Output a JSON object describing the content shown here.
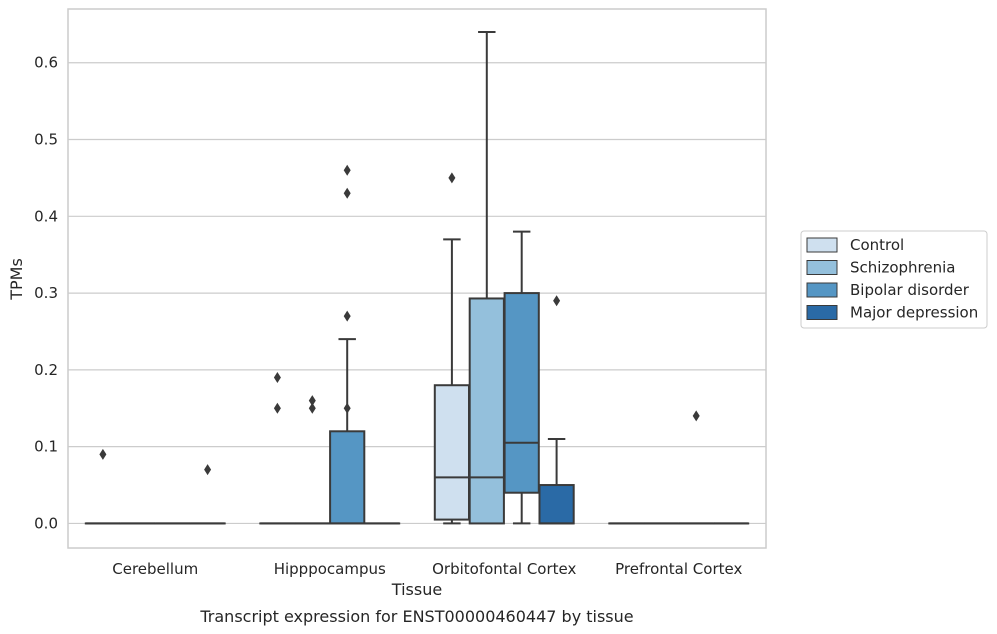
{
  "chart_data": {
    "type": "boxplot",
    "title": "",
    "xlabel": "Tissue",
    "ylabel": "TPMs",
    "caption": "Transcript expression for ENST00000460447 by tissue",
    "ylim": [
      -0.032,
      0.67
    ],
    "yticks": [
      0.0,
      0.1,
      0.2,
      0.3,
      0.4,
      0.5,
      0.6
    ],
    "grid": "horizontal",
    "legend_position": "right",
    "categories": [
      "Cerebellum",
      "Hipppocampus",
      "Orbitofontal Cortex",
      "Prefrontal Cortex"
    ],
    "series": [
      {
        "name": "Control",
        "color": "#cfe0ef",
        "boxes": [
          {
            "category": "Cerebellum",
            "whislo": 0,
            "q1": 0,
            "med": 0,
            "q3": 0,
            "whishi": 0,
            "fliers": [
              0.09
            ]
          },
          {
            "category": "Hipppocampus",
            "whislo": 0,
            "q1": 0,
            "med": 0,
            "q3": 0,
            "whishi": 0,
            "fliers": [
              0.19,
              0.15
            ]
          },
          {
            "category": "Orbitofontal Cortex",
            "whislo": 0,
            "q1": 0.005,
            "med": 0.06,
            "q3": 0.18,
            "whishi": 0.37,
            "fliers": [
              0.45
            ]
          },
          {
            "category": "Prefrontal Cortex",
            "whislo": 0,
            "q1": 0,
            "med": 0,
            "q3": 0,
            "whishi": 0,
            "fliers": []
          }
        ]
      },
      {
        "name": "Schizophrenia",
        "color": "#94c0dc",
        "boxes": [
          {
            "category": "Cerebellum",
            "whislo": 0,
            "q1": 0,
            "med": 0,
            "q3": 0,
            "whishi": 0,
            "fliers": []
          },
          {
            "category": "Hipppocampus",
            "whislo": 0,
            "q1": 0,
            "med": 0,
            "q3": 0,
            "whishi": 0,
            "fliers": [
              0.16,
              0.15
            ]
          },
          {
            "category": "Orbitofontal Cortex",
            "whislo": 0,
            "q1": 0,
            "med": 0.06,
            "q3": 0.293,
            "whishi": 0.64,
            "fliers": []
          },
          {
            "category": "Prefrontal Cortex",
            "whislo": 0,
            "q1": 0,
            "med": 0,
            "q3": 0,
            "whishi": 0,
            "fliers": []
          }
        ]
      },
      {
        "name": "Bipolar disorder",
        "color": "#5596c4",
        "boxes": [
          {
            "category": "Cerebellum",
            "whislo": 0,
            "q1": 0,
            "med": 0,
            "q3": 0,
            "whishi": 0,
            "fliers": []
          },
          {
            "category": "Hipppocampus",
            "whislo": 0,
            "q1": 0,
            "med": 0,
            "q3": 0.12,
            "whishi": 0.24,
            "fliers": [
              0.46,
              0.43,
              0.27,
              0.15
            ]
          },
          {
            "category": "Orbitofontal Cortex",
            "whislo": 0,
            "q1": 0.04,
            "med": 0.105,
            "q3": 0.3,
            "whishi": 0.38,
            "fliers": []
          },
          {
            "category": "Prefrontal Cortex",
            "whislo": 0,
            "q1": 0,
            "med": 0,
            "q3": 0,
            "whishi": 0,
            "fliers": [
              0.14
            ]
          }
        ]
      },
      {
        "name": "Major depression",
        "color": "#2a6aa6",
        "boxes": [
          {
            "category": "Cerebellum",
            "whislo": 0,
            "q1": 0,
            "med": 0,
            "q3": 0,
            "whishi": 0,
            "fliers": [
              0.07
            ]
          },
          {
            "category": "Hipppocampus",
            "whislo": 0,
            "q1": 0,
            "med": 0,
            "q3": 0,
            "whishi": 0,
            "fliers": []
          },
          {
            "category": "Orbitofontal Cortex",
            "whislo": 0,
            "q1": 0,
            "med": 0,
            "q3": 0.05,
            "whishi": 0.11,
            "fliers": [
              0.29
            ]
          },
          {
            "category": "Prefrontal Cortex",
            "whislo": 0,
            "q1": 0,
            "med": 0,
            "q3": 0,
            "whishi": 0,
            "fliers": []
          }
        ]
      }
    ]
  }
}
